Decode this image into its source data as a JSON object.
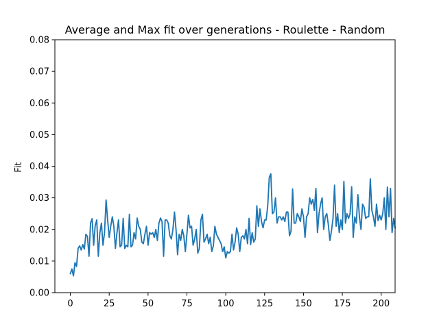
{
  "chart_data": {
    "type": "line",
    "title": "Average and Max fit over generations - Roulette - Random",
    "xlabel": "",
    "ylabel": "Fit",
    "xlim": [
      -9.95,
      208.95
    ],
    "ylim": [
      0.0,
      0.08
    ],
    "xticks": [
      0,
      25,
      50,
      75,
      100,
      125,
      150,
      175,
      200
    ],
    "yticks": [
      0.0,
      0.01,
      0.02,
      0.03,
      0.04,
      0.05,
      0.06,
      0.07,
      0.08
    ],
    "xtick_labels": [
      "0",
      "25",
      "50",
      "75",
      "100",
      "125",
      "150",
      "175",
      "200"
    ],
    "ytick_labels": [
      "0.00",
      "0.01",
      "0.02",
      "0.03",
      "0.04",
      "0.05",
      "0.06",
      "0.07",
      "0.08"
    ],
    "grid": false,
    "legend": "none",
    "colors": {
      "line": "#1f77b4",
      "axes": "#000000",
      "background": "#ffffff"
    },
    "series": [
      {
        "values": [
          0.006,
          0.0075,
          0.0053,
          0.0095,
          0.0083,
          0.014,
          0.0148,
          0.0135,
          0.0152,
          0.0138,
          0.0185,
          0.0178,
          0.0115,
          0.022,
          0.0234,
          0.015,
          0.0212,
          0.023,
          0.0115,
          0.019,
          0.022,
          0.015,
          0.019,
          0.0293,
          0.023,
          0.0175,
          0.021,
          0.024,
          0.021,
          0.014,
          0.019,
          0.023,
          0.0145,
          0.015,
          0.0235,
          0.014,
          0.015,
          0.0145,
          0.0248,
          0.0145,
          0.015,
          0.019,
          0.017,
          0.0236,
          0.021,
          0.02,
          0.016,
          0.0155,
          0.0185,
          0.021,
          0.015,
          0.019,
          0.0185,
          0.019,
          0.0175,
          0.02,
          0.0165,
          0.022,
          0.0236,
          0.0225,
          0.0115,
          0.023,
          0.023,
          0.022,
          0.018,
          0.017,
          0.02,
          0.0255,
          0.02,
          0.012,
          0.0185,
          0.0165,
          0.02,
          0.018,
          0.013,
          0.0185,
          0.0245,
          0.0205,
          0.021,
          0.015,
          0.017,
          0.02,
          0.0125,
          0.014,
          0.023,
          0.0248,
          0.016,
          0.017,
          0.0185,
          0.0155,
          0.0175,
          0.013,
          0.0148,
          0.021,
          0.0185,
          0.0175,
          0.0165,
          0.0155,
          0.013,
          0.0145,
          0.011,
          0.013,
          0.0125,
          0.013,
          0.0185,
          0.0135,
          0.016,
          0.0205,
          0.0185,
          0.013,
          0.0175,
          0.018,
          0.017,
          0.02,
          0.0155,
          0.0235,
          0.0152,
          0.019,
          0.016,
          0.017,
          0.0275,
          0.021,
          0.0265,
          0.0225,
          0.0205,
          0.023,
          0.023,
          0.0275,
          0.0365,
          0.0376,
          0.025,
          0.0255,
          0.03,
          0.022,
          0.024,
          0.024,
          0.023,
          0.024,
          0.0225,
          0.0255,
          0.0255,
          0.018,
          0.0195,
          0.0328,
          0.022,
          0.022,
          0.025,
          0.024,
          0.0225,
          0.0265,
          0.024,
          0.0175,
          0.024,
          0.025,
          0.03,
          0.028,
          0.0295,
          0.026,
          0.033,
          0.019,
          0.025,
          0.028,
          0.03,
          0.02,
          0.024,
          0.025,
          0.0215,
          0.0165,
          0.0195,
          0.0235,
          0.034,
          0.021,
          0.025,
          0.019,
          0.023,
          0.02,
          0.0352,
          0.022,
          0.025,
          0.0235,
          0.025,
          0.0335,
          0.0175,
          0.024,
          0.022,
          0.031,
          0.024,
          0.02,
          0.028,
          0.027,
          0.0235,
          0.024,
          0.024,
          0.036,
          0.026,
          0.024,
          0.021,
          0.028,
          0.0228,
          0.0245,
          0.023,
          0.025,
          0.03,
          0.02,
          0.0334,
          0.024,
          0.033,
          0.019,
          0.0235,
          0.0205
        ]
      }
    ]
  }
}
